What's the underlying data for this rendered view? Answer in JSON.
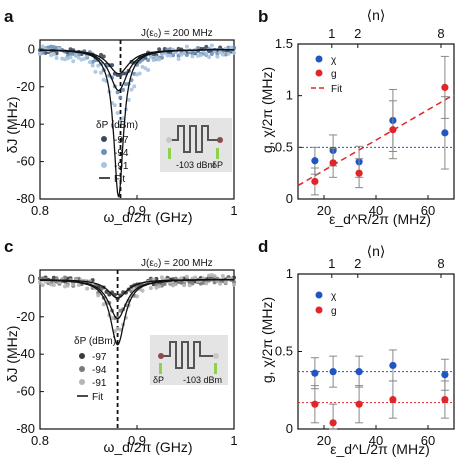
{
  "panels": [
    {
      "id": "a",
      "label": "a",
      "annotation": "J(ε₀) = 200 MHz",
      "ylabel": "δJ (MHz)",
      "xlabel": "ω_d/2π (GHz)",
      "xticks": [
        "0.8",
        "0.9",
        "1"
      ],
      "yticks": [
        "0",
        "-20",
        "-40",
        "-60",
        "-80"
      ],
      "legend_title": "δP (dBm)",
      "legend": [
        "-97",
        "-94",
        "-91",
        "Fit"
      ],
      "inset_labels": [
        "-103 dBm",
        "δP"
      ]
    },
    {
      "id": "b",
      "label": "b",
      "ylabel": "g, χ/2π (MHz)",
      "xlabel": "ε_d^R/2π (MHz)",
      "xticks": [
        "20",
        "40",
        "60"
      ],
      "yticks": [
        "0",
        "0.5",
        "1",
        "1.5"
      ],
      "top_axis_label": "⟨n⟩",
      "top_ticks": [
        "1",
        "2",
        "8"
      ],
      "legend": [
        "χ",
        "g",
        "Fit"
      ]
    },
    {
      "id": "c",
      "label": "c",
      "annotation": "J(ε₀) = 200 MHz",
      "ylabel": "δJ (MHz)",
      "xlabel": "ω_d/2π (GHz)",
      "xticks": [
        "0.8",
        "0.9",
        "1"
      ],
      "yticks": [
        "0",
        "-20",
        "-40",
        "-60",
        "-80"
      ],
      "legend_title": "δP (dBm)",
      "legend": [
        "-97",
        "-94",
        "-91",
        "Fit"
      ],
      "inset_labels": [
        "δP",
        "-103 dBm"
      ]
    },
    {
      "id": "d",
      "label": "d",
      "ylabel": "g, χ/2π (MHz)",
      "xlabel": "ε_d^L/2π (MHz)",
      "xticks": [
        "20",
        "40",
        "60"
      ],
      "yticks": [
        "0",
        "0.5",
        "1"
      ],
      "top_axis_label": "⟨n⟩",
      "top_ticks": [
        "1",
        "2",
        "8"
      ],
      "legend": [
        "χ",
        "g"
      ]
    }
  ],
  "colors": {
    "dark": "#3d4a5c",
    "mid": "#6d8fb8",
    "light": "#a9c4e0",
    "grey_dark": "#3a3a3a",
    "grey_mid": "#7a7a7a",
    "grey_light": "#b5b5b5",
    "blue": "#2255c4",
    "red": "#e0262b",
    "green": "#8fd14f"
  },
  "chart_data": [
    {
      "panel": "a",
      "type": "line",
      "xlim": [
        0.8,
        1.0
      ],
      "ylim": [
        -80,
        5
      ],
      "vline_x": 0.883,
      "series": [
        {
          "name": "-97",
          "color": "dark",
          "center": 0.883,
          "depth": 14,
          "width": 0.028
        },
        {
          "name": "-94",
          "color": "mid",
          "center": 0.883,
          "depth": 24,
          "width": 0.027
        },
        {
          "name": "-91",
          "color": "light",
          "center": 0.883,
          "depth": 38,
          "width": 0.03
        }
      ],
      "fits": [
        {
          "center": 0.881,
          "depth": 13,
          "width": 0.026
        },
        {
          "center": 0.881,
          "depth": 22,
          "width": 0.022
        },
        {
          "center": 0.881,
          "depth": 79,
          "width": 0.012
        }
      ]
    },
    {
      "panel": "b",
      "type": "scatter",
      "xlim": [
        10,
        70
      ],
      "ylim": [
        0,
        1.5
      ],
      "top_ticks_x": [
        23,
        33,
        65
      ],
      "series": [
        {
          "name": "χ",
          "color": "blue",
          "x": [
            16.5,
            23.5,
            33.5,
            46.5,
            66.5
          ],
          "y": [
            0.37,
            0.47,
            0.36,
            0.76,
            0.64
          ],
          "err": [
            0.13,
            0.15,
            0.15,
            0.3,
            0.35
          ]
        },
        {
          "name": "g",
          "color": "red",
          "x": [
            16.5,
            23.5,
            33.5,
            46.5,
            66.5
          ],
          "y": [
            0.17,
            0.35,
            0.25,
            0.67,
            1.08
          ],
          "err": [
            0.13,
            0.14,
            0.14,
            0.28,
            0.3
          ]
        }
      ],
      "fit_line": {
        "x": [
          10,
          70
        ],
        "y": [
          0.13,
          1.01
        ]
      },
      "hline_y": 0.5
    },
    {
      "panel": "c",
      "type": "line",
      "xlim": [
        0.8,
        1.0
      ],
      "ylim": [
        -80,
        5
      ],
      "vline_x": 0.88,
      "series": [
        {
          "name": "-97",
          "color": "grey_dark",
          "center": 0.88,
          "depth": 10,
          "width": 0.025
        },
        {
          "name": "-94",
          "color": "grey_mid",
          "center": 0.88,
          "depth": 20,
          "width": 0.024
        },
        {
          "name": "-91",
          "color": "grey_light",
          "center": 0.88,
          "depth": 29,
          "width": 0.022
        }
      ],
      "fits": [
        {
          "center": 0.88,
          "depth": 10,
          "width": 0.024
        },
        {
          "center": 0.88,
          "depth": 21,
          "width": 0.022
        },
        {
          "center": 0.88,
          "depth": 35,
          "width": 0.018
        }
      ]
    },
    {
      "panel": "d",
      "type": "scatter",
      "xlim": [
        10,
        70
      ],
      "ylim": [
        0,
        1.0
      ],
      "top_ticks_x": [
        23,
        33,
        65
      ],
      "series": [
        {
          "name": "χ",
          "color": "blue",
          "x": [
            16.5,
            23.5,
            33.5,
            46.5,
            66.5
          ],
          "y": [
            0.36,
            0.37,
            0.37,
            0.41,
            0.35
          ],
          "err": [
            0.1,
            0.1,
            0.1,
            0.1,
            0.1
          ]
        },
        {
          "name": "g",
          "color": "red",
          "x": [
            16.5,
            23.5,
            33.5,
            46.5,
            66.5
          ],
          "y": [
            0.16,
            0.04,
            0.16,
            0.19,
            0.19
          ],
          "err": [
            0.12,
            0.12,
            0.12,
            0.12,
            0.12
          ]
        }
      ],
      "hline_blue": 0.37,
      "hline_red": 0.17
    }
  ]
}
